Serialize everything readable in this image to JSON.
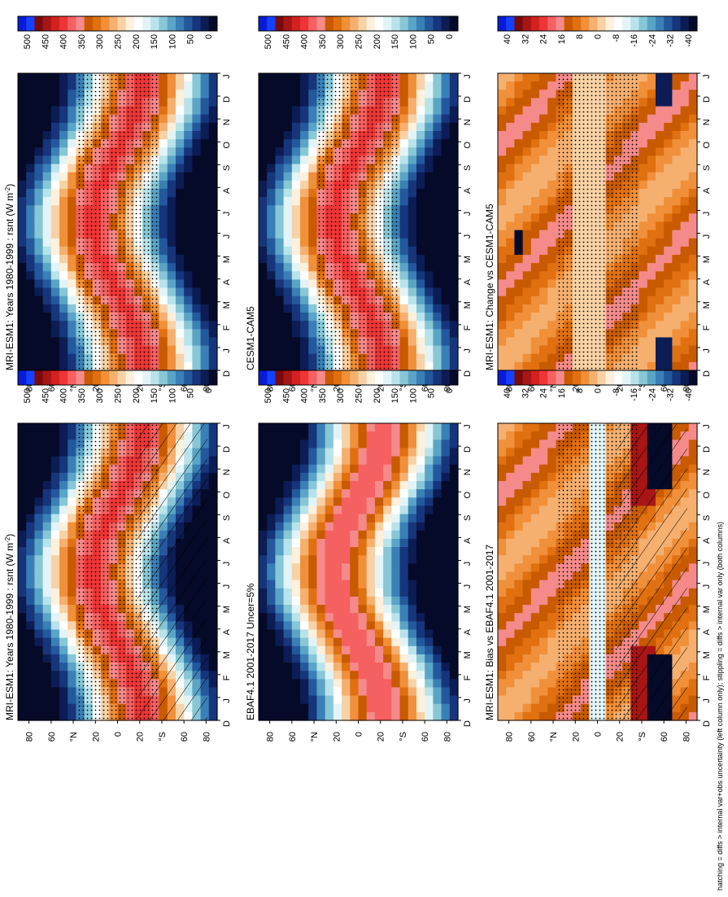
{
  "chart_data": {
    "type": "heatmap",
    "orientation": "rotated 90 degrees counter-clockwise (read with page turned)",
    "footnote": "hatching = diffs > internal var+obs uncertainty (left column only); stippling = diffs > internal var only (both columns)",
    "absolute_scale": {
      "tick_labels": [
        "500",
        "450",
        "400",
        "350",
        "300",
        "250",
        "200",
        "150",
        "100",
        "50",
        "0"
      ],
      "colors": [
        "#0a1bd8",
        "#1540ff",
        "#7a0a0a",
        "#a81515",
        "#d42020",
        "#ee3535",
        "#f56060",
        "#f58a8a",
        "#c85a00",
        "#e07010",
        "#f0903a",
        "#f5b070",
        "#f8d2a6",
        "#fdf0dc",
        "#ffffff",
        "#e2f4f7",
        "#b8e3ea",
        "#87c7d6",
        "#5aa5c6",
        "#3a7fb6",
        "#24589d",
        "#17357a",
        "#0c1c54",
        "#050a28"
      ]
    },
    "diff_scale": {
      "tick_labels": [
        "40",
        "32",
        "24",
        "16",
        "8",
        "0",
        "-8",
        "-16",
        "-24",
        "-32",
        "-40"
      ],
      "colors": [
        "#0a1bd8",
        "#1540ff",
        "#7a0a0a",
        "#a81515",
        "#d42020",
        "#ee3535",
        "#f56060",
        "#f58a8a",
        "#c85a00",
        "#e07010",
        "#f0903a",
        "#f5b070",
        "#f8d2a6",
        "#fdf0dc",
        "#ffffff",
        "#e2f4f7",
        "#b8e3ea",
        "#87c7d6",
        "#5aa5c6",
        "#3a7fb6",
        "#24589d",
        "#17357a",
        "#0c1c54",
        "#050a28"
      ]
    },
    "months": [
      "D",
      "J",
      "F",
      "M",
      "A",
      "M",
      "J",
      "J",
      "A",
      "S",
      "O",
      "N",
      "D",
      "J"
    ],
    "lat_ticks": [
      "80",
      "60",
      "°N",
      "20",
      "0",
      "20",
      "°S",
      "60",
      "80"
    ],
    "panels": [
      {
        "title": "MRI-ESM1: Years 1980-1999 : rsnt (W m",
        "title_sup": "-2",
        "title_end": ")",
        "kind": "absolute",
        "hatching": true,
        "stippling": true
      },
      {
        "title": "MRI-ESM1: Years 1980-1999 : rsnt (W m",
        "title_sup": "-2",
        "title_end": ")",
        "kind": "absolute",
        "hatching": false,
        "stippling": true
      },
      {
        "title": "EBAF4.1 2001-2017 Uncer=5%",
        "kind": "absolute",
        "hatching": false,
        "stippling": false
      },
      {
        "title": "CESM1-CAM5",
        "kind": "absolute",
        "hatching": false,
        "stippling": true
      },
      {
        "title": "MRI-ESM1: Bias vs EBAF4.1 2001-2017",
        "kind": "difference",
        "hatching": true,
        "stippling": true
      },
      {
        "title": "MRI-ESM1: Change vs CESM1-CAM5",
        "kind": "difference",
        "hatching": false,
        "stippling": true
      }
    ],
    "value_range_absolute": [
      0,
      500
    ],
    "value_range_difference": [
      -40,
      40
    ]
  }
}
